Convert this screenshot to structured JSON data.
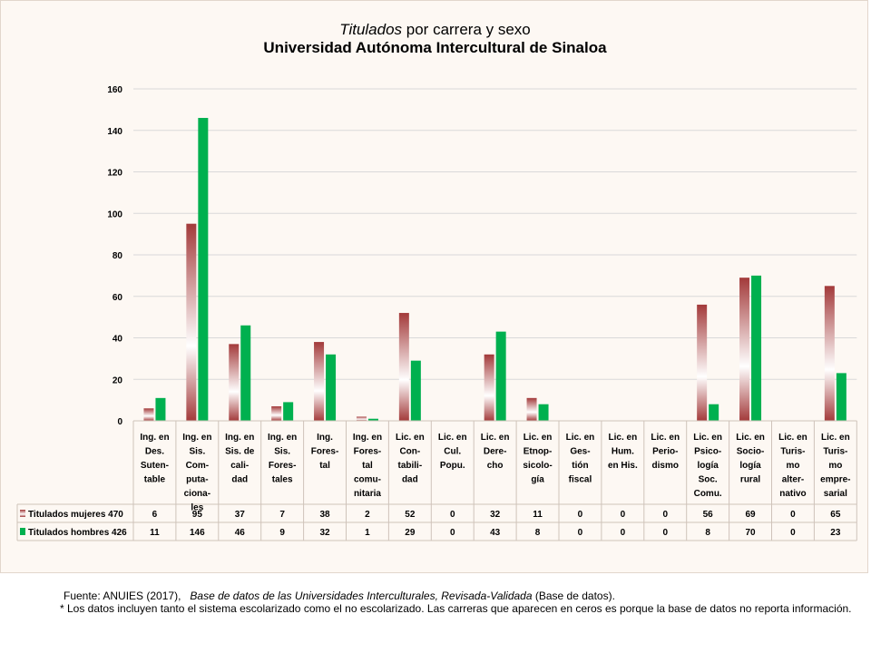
{
  "title": {
    "line1_italic": "Titulados",
    "line1_rest": " por carrera y sexo",
    "line2": "Universidad Autónoma Intercultural de Sinaloa"
  },
  "colors": {
    "mujeres_top": "#a33a3a",
    "mujeres_mid": "#ffffff",
    "hombres": "#00b04f",
    "grid": "#d9d9d9",
    "panel_bg": "#fdf8f3"
  },
  "chart_data": {
    "type": "bar",
    "categories": [
      [
        "Ing. en",
        "Des.",
        "Suten-",
        "table"
      ],
      [
        "Ing. en",
        "Sis.",
        "Com-",
        "puta-",
        "ciona-",
        "les"
      ],
      [
        "Ing. en",
        "Sis. de",
        "cali-",
        "dad"
      ],
      [
        "Ing. en",
        "Sis.",
        "Fores-",
        "tales"
      ],
      [
        "Ing.",
        "Fores-",
        "tal"
      ],
      [
        "Ing. en",
        "Fores-",
        "tal",
        "comu-",
        "nitaria"
      ],
      [
        "Lic. en",
        "Con-",
        "tabili-",
        "dad"
      ],
      [
        "Lic. en",
        "Cul.",
        "Popu."
      ],
      [
        "Lic. en",
        "Dere-",
        "cho"
      ],
      [
        "Lic. en",
        "Etnop-",
        "sicolo-",
        "gía"
      ],
      [
        "Lic. en",
        "Ges-",
        "tión",
        "fiscal"
      ],
      [
        "Lic. en",
        "Hum.",
        "en His."
      ],
      [
        "Lic. en",
        "Perio-",
        "dismo"
      ],
      [
        "Lic. en",
        "Psico-",
        "logía",
        "Soc.",
        "Comu."
      ],
      [
        "Lic. en",
        "Socio-",
        "logía",
        "rural"
      ],
      [
        "Lic. en",
        "Turis-",
        "mo",
        "alter-",
        "nativo"
      ],
      [
        "Lic. en",
        "Turis-",
        "mo",
        "empre-",
        "sarial"
      ]
    ],
    "series": [
      {
        "name": "Titulados mujeres 470",
        "values": [
          6,
          95,
          37,
          7,
          38,
          2,
          52,
          0,
          32,
          11,
          0,
          0,
          0,
          56,
          69,
          0,
          65
        ]
      },
      {
        "name": "Titulados hombres 426",
        "values": [
          11,
          146,
          46,
          9,
          32,
          1,
          29,
          0,
          43,
          8,
          0,
          0,
          0,
          8,
          70,
          0,
          23
        ]
      }
    ],
    "yticks": [
      0,
      20,
      40,
      60,
      80,
      100,
      120,
      140,
      160
    ],
    "ylim": [
      0,
      160
    ],
    "grid": true,
    "legend": "data-table"
  },
  "footer": {
    "source_prefix": "Fuente: ANUIES (2017),",
    "source_title": "Base de datos de las Universidades Interculturales, Revisada-Validada",
    "source_suffix": " (Base de datos).",
    "note": "* Los datos incluyen tanto el sistema escolarizado como el no escolarizado. Las carreras que aparecen en ceros es porque la base de datos no reporta información."
  }
}
